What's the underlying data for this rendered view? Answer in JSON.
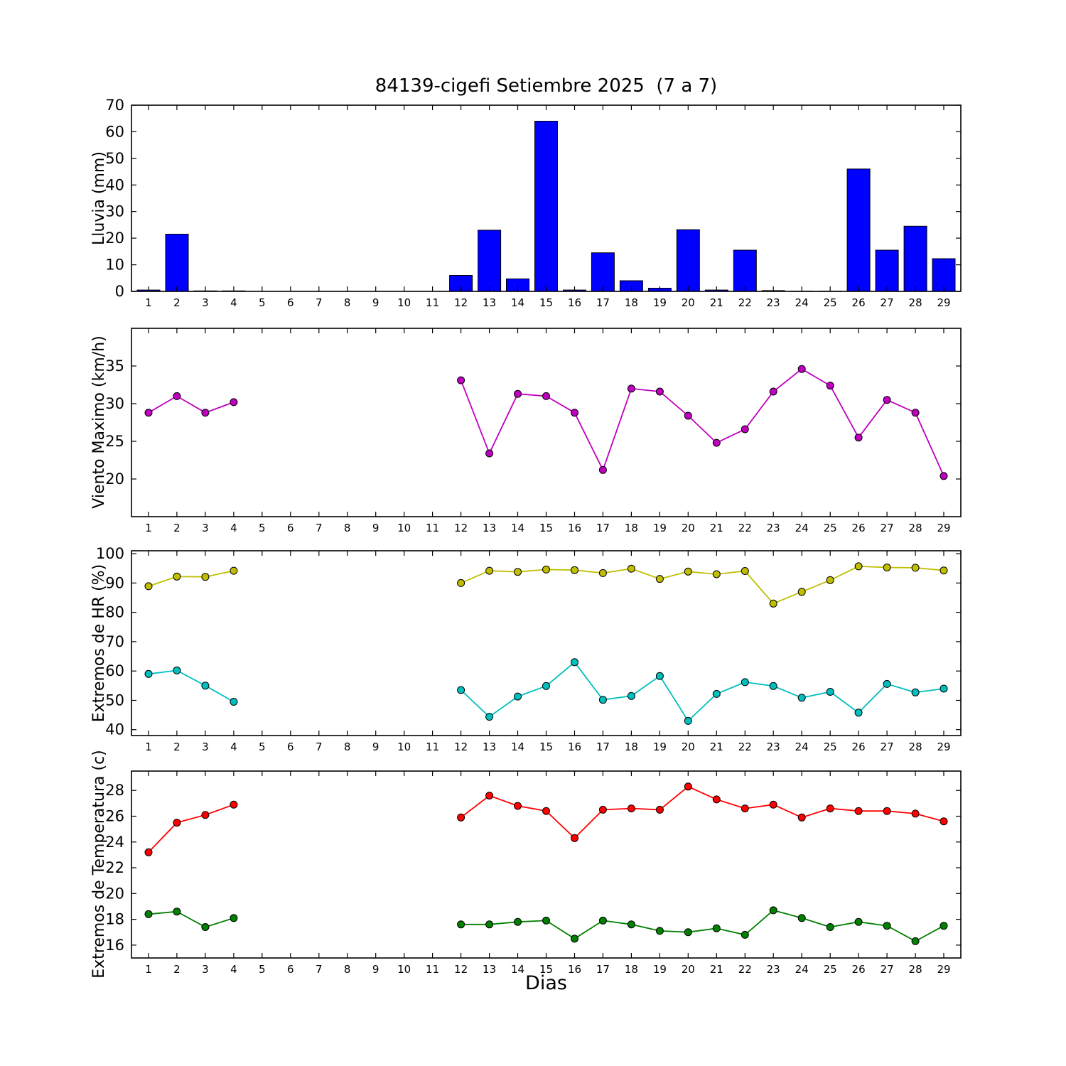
{
  "figure": {
    "title": "84139-cigefi Setiembre 2025  (7 a 7)",
    "xlabel": "Dias",
    "background_color": "#ffffff",
    "frame_color": "#000000"
  },
  "x_axis": {
    "days": [
      1,
      2,
      3,
      4,
      5,
      6,
      7,
      8,
      9,
      10,
      11,
      12,
      13,
      14,
      15,
      16,
      17,
      18,
      19,
      20,
      21,
      22,
      23,
      24,
      25,
      26,
      27,
      28,
      29
    ],
    "xlim": [
      0.4,
      29.6
    ]
  },
  "chart_data": [
    {
      "type": "bar",
      "ylabel": "Lluvia (mm)",
      "ylim": [
        0,
        70
      ],
      "yticks": [
        0,
        10,
        20,
        30,
        40,
        50,
        60,
        70
      ],
      "bar_color": "#0000ff",
      "bar_edge_color": "#000000",
      "bar_width": 0.8,
      "values": [
        0.5,
        21.5,
        0.2,
        0.2,
        0,
        0,
        0,
        0,
        0,
        0,
        0,
        6,
        23,
        4.7,
        64,
        0.5,
        14.5,
        4,
        1.2,
        23.2,
        0.5,
        15.5,
        0.3,
        0.1,
        0.1,
        46,
        15.5,
        24.5,
        12.3
      ]
    },
    {
      "type": "line",
      "ylabel": "Viento Maximo (km/h)",
      "ylim": [
        15,
        40
      ],
      "yticks": [
        20,
        25,
        30,
        35
      ],
      "series": [
        {
          "name": "viento-maximo",
          "color": "#bf00bf",
          "values": [
            28.8,
            31.0,
            28.8,
            30.2,
            null,
            null,
            null,
            null,
            null,
            null,
            null,
            33.1,
            23.4,
            31.3,
            31.0,
            28.8,
            21.2,
            32.0,
            31.6,
            28.4,
            24.8,
            26.6,
            31.6,
            34.6,
            32.4,
            25.5,
            30.5,
            28.8,
            20.4
          ]
        }
      ]
    },
    {
      "type": "line",
      "ylabel": "Extremos de HR (%)",
      "ylim": [
        38,
        101
      ],
      "yticks": [
        40,
        50,
        60,
        70,
        80,
        90,
        100
      ],
      "series": [
        {
          "name": "hr-maxima",
          "color": "#bfbf00",
          "values": [
            88.9,
            92.2,
            92.1,
            94.2,
            null,
            null,
            null,
            null,
            null,
            null,
            null,
            90.0,
            94.2,
            93.8,
            94.6,
            94.4,
            93.4,
            94.9,
            91.4,
            93.9,
            93.0,
            94.1,
            83.0,
            87.0,
            91.0,
            95.7,
            95.3,
            95.2,
            94.3
          ]
        },
        {
          "name": "hr-minima",
          "color": "#00bfbf",
          "values": [
            59.0,
            60.2,
            55.0,
            49.5,
            null,
            null,
            null,
            null,
            null,
            null,
            null,
            53.5,
            44.4,
            51.3,
            54.9,
            63.0,
            50.2,
            51.5,
            58.3,
            43.0,
            52.2,
            56.2,
            54.9,
            50.9,
            52.9,
            45.8,
            55.6,
            52.7,
            54.0
          ]
        }
      ]
    },
    {
      "type": "line",
      "ylabel": "Extremos de Temperatura (c)",
      "ylim": [
        15,
        29.5
      ],
      "yticks": [
        16,
        18,
        20,
        22,
        24,
        26,
        28
      ],
      "series": [
        {
          "name": "temperatura-maxima",
          "color": "#ff0000",
          "values": [
            23.2,
            25.5,
            26.1,
            26.9,
            null,
            null,
            null,
            null,
            null,
            null,
            null,
            25.9,
            27.6,
            26.8,
            26.4,
            24.3,
            26.5,
            26.6,
            26.5,
            28.3,
            27.3,
            26.6,
            26.9,
            25.9,
            26.6,
            26.4,
            26.4,
            26.2,
            25.6
          ]
        },
        {
          "name": "temperatura-minima",
          "color": "#008000",
          "values": [
            18.4,
            18.6,
            17.4,
            18.1,
            null,
            null,
            null,
            null,
            null,
            null,
            null,
            17.6,
            17.6,
            17.8,
            17.9,
            16.5,
            17.9,
            17.6,
            17.1,
            17.0,
            17.3,
            16.8,
            18.7,
            18.1,
            17.4,
            17.8,
            17.5,
            16.3,
            17.5
          ]
        }
      ]
    }
  ]
}
